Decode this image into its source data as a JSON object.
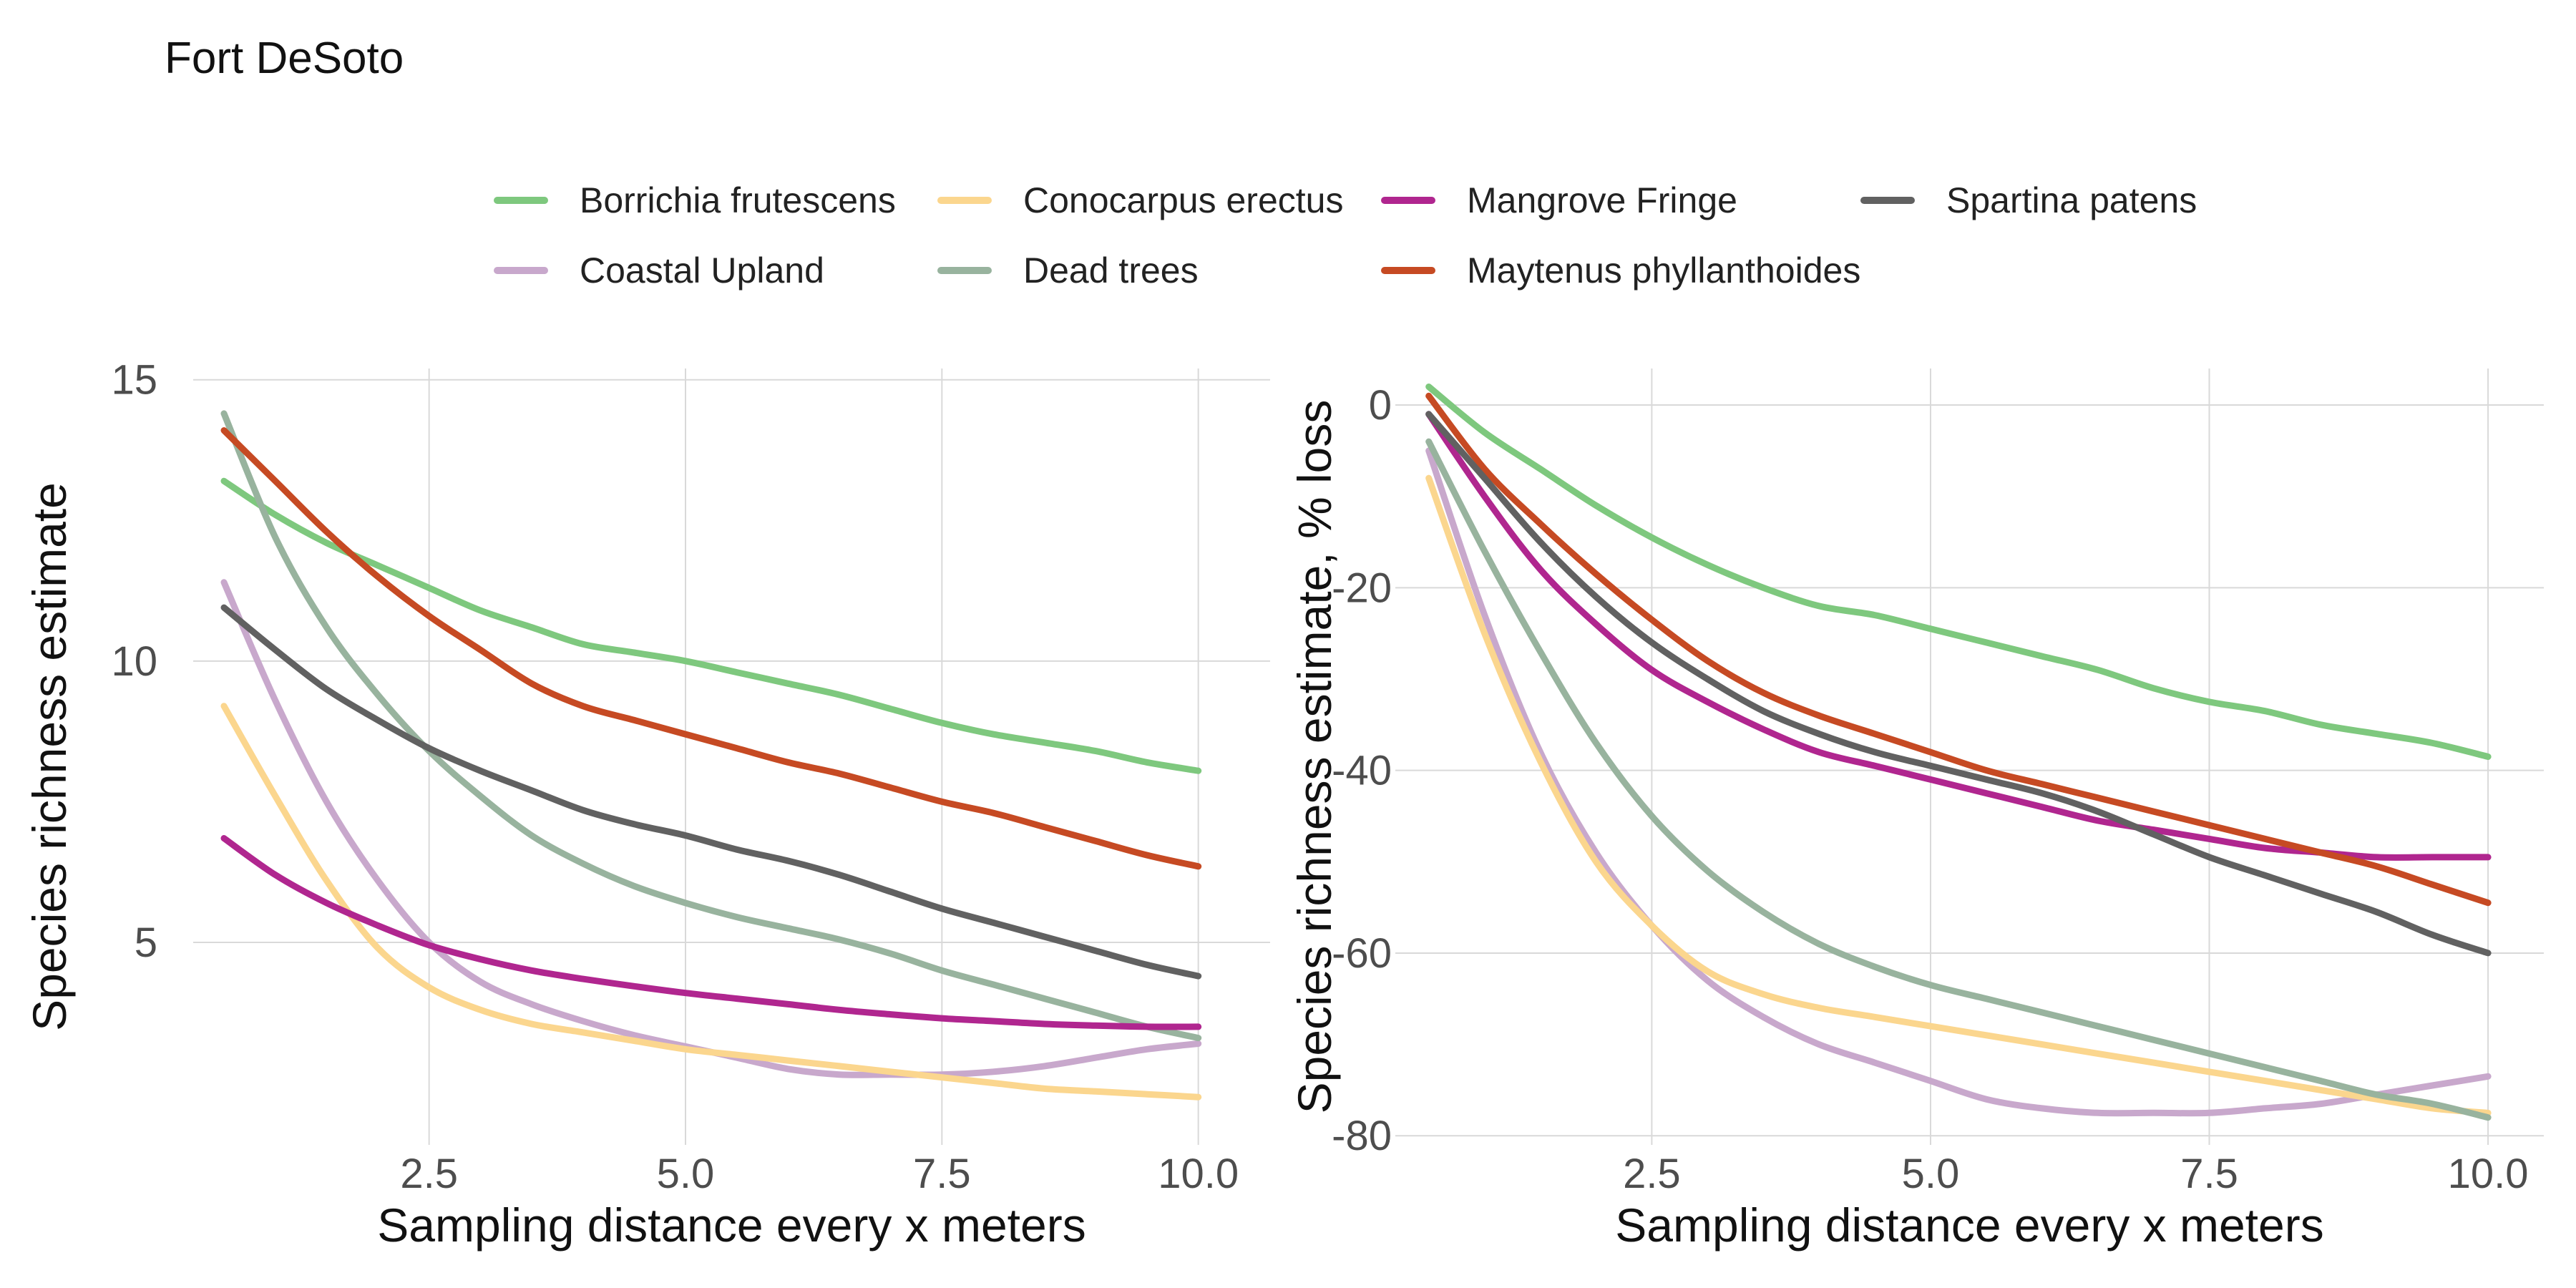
{
  "figure": {
    "title": "Fort DeSoto"
  },
  "chart_data": [
    {
      "type": "line",
      "title": "",
      "xlabel": "Sampling distance every x meters",
      "ylabel": "Species richness estimate",
      "xlim": [
        0.2,
        10.7
      ],
      "ylim": [
        1.4,
        15.2
      ],
      "xticks": [
        2.5,
        5.0,
        7.5,
        10.0
      ],
      "xtick_labels": [
        "2.5",
        "5.0",
        "7.5",
        "10.0"
      ],
      "yticks": [
        5,
        10,
        15
      ],
      "ytick_labels": [
        "5",
        "10",
        "15"
      ],
      "grid": true,
      "x": [
        0.5,
        1,
        1.5,
        2,
        2.5,
        3,
        3.5,
        4,
        4.5,
        5,
        5.5,
        6,
        6.5,
        7,
        7.5,
        8,
        8.5,
        9,
        9.5,
        10
      ],
      "series": [
        {
          "name": "Borrichia frutescens",
          "color": "#7ec87e",
          "values": [
            13.2,
            12.6,
            12.1,
            11.7,
            11.3,
            10.9,
            10.6,
            10.3,
            10.15,
            10.0,
            9.8,
            9.6,
            9.4,
            9.15,
            8.9,
            8.7,
            8.55,
            8.4,
            8.2,
            8.05
          ]
        },
        {
          "name": "Coastal Upland",
          "color": "#c8a8cc",
          "values": [
            11.4,
            9.3,
            7.5,
            6.1,
            5.0,
            4.3,
            3.9,
            3.6,
            3.35,
            3.15,
            2.95,
            2.75,
            2.65,
            2.65,
            2.65,
            2.7,
            2.8,
            2.95,
            3.1,
            3.2
          ]
        },
        {
          "name": "Conocarpus erectus",
          "color": "#fbd68e",
          "values": [
            9.2,
            7.6,
            6.1,
            4.9,
            4.2,
            3.8,
            3.55,
            3.4,
            3.25,
            3.1,
            3.0,
            2.9,
            2.8,
            2.7,
            2.6,
            2.5,
            2.4,
            2.35,
            2.3,
            2.25
          ]
        },
        {
          "name": "Dead trees",
          "color": "#98b39e",
          "values": [
            14.4,
            12.2,
            10.6,
            9.4,
            8.4,
            7.6,
            6.9,
            6.4,
            6.0,
            5.7,
            5.45,
            5.25,
            5.05,
            4.8,
            4.5,
            4.25,
            4.0,
            3.75,
            3.5,
            3.3
          ]
        },
        {
          "name": "Mangrove Fringe",
          "color": "#b0268f",
          "values": [
            6.85,
            6.2,
            5.7,
            5.3,
            4.95,
            4.7,
            4.5,
            4.35,
            4.22,
            4.1,
            4.0,
            3.9,
            3.8,
            3.72,
            3.65,
            3.6,
            3.55,
            3.52,
            3.5,
            3.5
          ]
        },
        {
          "name": "Maytenus phyllanthoides",
          "color": "#c64a23",
          "values": [
            14.1,
            13.2,
            12.3,
            11.5,
            10.8,
            10.2,
            9.6,
            9.2,
            8.95,
            8.7,
            8.45,
            8.2,
            8.0,
            7.75,
            7.5,
            7.3,
            7.05,
            6.8,
            6.55,
            6.35
          ]
        },
        {
          "name": "Spartina patens",
          "color": "#616161",
          "values": [
            10.95,
            10.2,
            9.5,
            8.95,
            8.45,
            8.05,
            7.7,
            7.35,
            7.1,
            6.9,
            6.65,
            6.45,
            6.2,
            5.9,
            5.6,
            5.35,
            5.1,
            4.85,
            4.6,
            4.4
          ]
        }
      ]
    },
    {
      "type": "line",
      "title": "",
      "xlabel": "Sampling distance every x meters",
      "ylabel": "Species richness estimate, % loss",
      "xlim": [
        0.2,
        10.5
      ],
      "ylim": [
        -81,
        4
      ],
      "xticks": [
        2.5,
        5.0,
        7.5,
        10.0
      ],
      "xtick_labels": [
        "2.5",
        "5.0",
        "7.5",
        "10.0"
      ],
      "yticks": [
        0,
        -20,
        -40,
        -60,
        -80
      ],
      "ytick_labels": [
        "0",
        "-20",
        "-40",
        "-60",
        "-80"
      ],
      "grid": true,
      "x": [
        0.5,
        1,
        1.5,
        2,
        2.5,
        3,
        3.5,
        4,
        4.5,
        5,
        5.5,
        6,
        6.5,
        7,
        7.5,
        8,
        8.5,
        9,
        9.5,
        10
      ],
      "series": [
        {
          "name": "Borrichia frutescens",
          "color": "#7ec87e",
          "values": [
            2,
            -3,
            -7,
            -11,
            -14.5,
            -17.5,
            -20,
            -22,
            -23,
            -24.5,
            -26,
            -27.5,
            -29,
            -31,
            -32.5,
            -33.5,
            -35,
            -36,
            -37,
            -38.5
          ]
        },
        {
          "name": "Coastal Upland",
          "color": "#c8a8cc",
          "values": [
            -5,
            -23,
            -38,
            -49,
            -57,
            -63,
            -67,
            -70,
            -72,
            -74,
            -76,
            -77,
            -77.5,
            -77.5,
            -77.5,
            -77,
            -76.5,
            -75.5,
            -74.5,
            -73.5
          ]
        },
        {
          "name": "Conocarpus erectus",
          "color": "#fbd68e",
          "values": [
            -8,
            -25,
            -39,
            -50,
            -57,
            -62,
            -64.5,
            -66,
            -67,
            -68,
            -69,
            -70,
            -71,
            -72,
            -73,
            -74,
            -75,
            -76,
            -77,
            -77.5
          ]
        },
        {
          "name": "Dead trees",
          "color": "#98b39e",
          "values": [
            -4,
            -16,
            -27,
            -37,
            -45,
            -51,
            -55.5,
            -59,
            -61.5,
            -63.5,
            -65,
            -66.5,
            -68,
            -69.5,
            -71,
            -72.5,
            -74,
            -75.5,
            -76.5,
            -78
          ]
        },
        {
          "name": "Mangrove Fringe",
          "color": "#b0268f",
          "values": [
            -1,
            -10,
            -18,
            -24,
            -29,
            -32.5,
            -35.5,
            -38,
            -39.5,
            -41,
            -42.5,
            -44,
            -45.5,
            -46.5,
            -47.5,
            -48.5,
            -49,
            -49.5,
            -49.5,
            -49.5
          ]
        },
        {
          "name": "Maytenus phyllanthoides",
          "color": "#c64a23",
          "values": [
            1,
            -7,
            -13,
            -18.5,
            -23.5,
            -28,
            -31.5,
            -34,
            -36,
            -38,
            -40,
            -41.5,
            -43,
            -44.5,
            -46,
            -47.5,
            -49,
            -50.5,
            -52.5,
            -54.5
          ]
        },
        {
          "name": "Spartina patens",
          "color": "#616161",
          "values": [
            -1,
            -8,
            -15,
            -21,
            -26,
            -30,
            -33.5,
            -36,
            -38,
            -39.5,
            -41,
            -42.5,
            -44.5,
            -47,
            -49.5,
            -51.5,
            -53.5,
            -55.5,
            -58,
            -60
          ]
        }
      ]
    }
  ]
}
